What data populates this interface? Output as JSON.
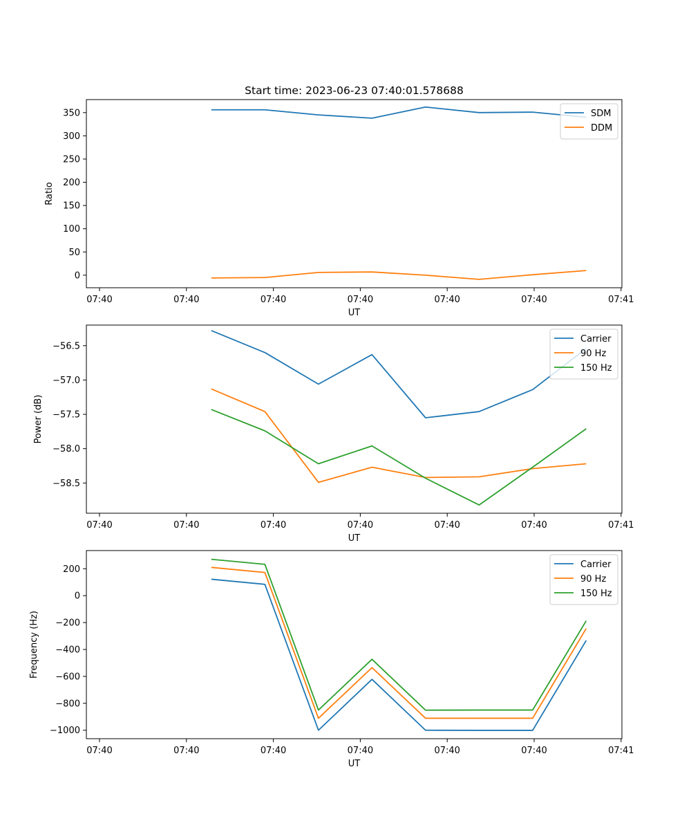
{
  "figure_title": "Start time: 2023-06-23 07:40:01.578688",
  "colors": {
    "blue": "#1f77b4",
    "orange": "#ff7f0e",
    "green": "#2ca02c"
  },
  "chart_data": [
    {
      "type": "line",
      "title": "Start time: 2023-06-23 07:40:01.578688",
      "xlabel": "UT",
      "ylabel": "Ratio",
      "x_tick_labels": [
        "07:40",
        "07:40",
        "07:40",
        "07:40",
        "07:40",
        "07:40",
        "07:41"
      ],
      "x": [
        0.7,
        1.0,
        1.3,
        1.6,
        1.9,
        2.2,
        2.5,
        2.8
      ],
      "xlim": [
        0.0,
        3.0
      ],
      "ylim": [
        -27,
        378
      ],
      "y_ticks": [
        0,
        50,
        100,
        150,
        200,
        250,
        300,
        350
      ],
      "legend": "top-right",
      "grid": false,
      "series": [
        {
          "name": "SDM",
          "color": "#1f77b4",
          "values": [
            356,
            356,
            345,
            338,
            362,
            350,
            351,
            340
          ]
        },
        {
          "name": "DDM",
          "color": "#ff7f0e",
          "values": [
            -6,
            -5,
            6,
            7,
            0,
            -9,
            1,
            10
          ]
        }
      ]
    },
    {
      "type": "line",
      "title": "",
      "xlabel": "UT",
      "ylabel": "Power (dB)",
      "x_tick_labels": [
        "07:40",
        "07:40",
        "07:40",
        "07:40",
        "07:40",
        "07:40",
        "07:41"
      ],
      "x": [
        0.7,
        1.0,
        1.3,
        1.6,
        1.9,
        2.2,
        2.5,
        2.8
      ],
      "xlim": [
        0.0,
        3.0
      ],
      "ylim": [
        -58.94,
        -56.2
      ],
      "y_ticks": [
        -58.5,
        -58.0,
        -57.5,
        -57.0,
        -56.5
      ],
      "y_tick_labels": [
        "−58.5",
        "−58.0",
        "−57.5",
        "−57.0",
        "−56.5"
      ],
      "legend": "top-right",
      "grid": false,
      "series": [
        {
          "name": "Carrier",
          "color": "#1f77b4",
          "values": [
            -56.28,
            -56.6,
            -57.06,
            -56.63,
            -57.55,
            -57.46,
            -57.14,
            -56.54
          ]
        },
        {
          "name": "90 Hz",
          "color": "#ff7f0e",
          "values": [
            -57.13,
            -57.46,
            -58.49,
            -58.27,
            -58.42,
            -58.41,
            -58.29,
            -58.22
          ]
        },
        {
          "name": "150 Hz",
          "color": "#2ca02c",
          "values": [
            -57.43,
            -57.74,
            -58.22,
            -57.96,
            -58.43,
            -58.82,
            -58.27,
            -57.71
          ]
        }
      ]
    },
    {
      "type": "line",
      "title": "",
      "xlabel": "UT",
      "ylabel": "Frequency (Hz)",
      "x_tick_labels": [
        "07:40",
        "07:40",
        "07:40",
        "07:40",
        "07:40",
        "07:40",
        "07:41"
      ],
      "x": [
        0.7,
        1.0,
        1.3,
        1.6,
        1.9,
        2.2,
        2.5,
        2.8
      ],
      "xlim": [
        0.0,
        3.0
      ],
      "ylim": [
        -1063,
        335
      ],
      "y_ticks": [
        -1000,
        -800,
        -600,
        -400,
        -200,
        0,
        200
      ],
      "y_tick_labels": [
        "−1000",
        "−800",
        "−600",
        "−400",
        "−200",
        "0",
        "200"
      ],
      "legend": "top-right",
      "grid": false,
      "series": [
        {
          "name": "Carrier",
          "color": "#1f77b4",
          "values": [
            122,
            84,
            -1000,
            -622,
            -1000,
            -1001,
            -1001,
            -333
          ]
        },
        {
          "name": "90 Hz",
          "color": "#ff7f0e",
          "values": [
            210,
            172,
            -911,
            -535,
            -911,
            -911,
            -911,
            -244
          ]
        },
        {
          "name": "150 Hz",
          "color": "#2ca02c",
          "values": [
            270,
            233,
            -850,
            -473,
            -851,
            -850,
            -850,
            -187
          ]
        }
      ]
    }
  ]
}
